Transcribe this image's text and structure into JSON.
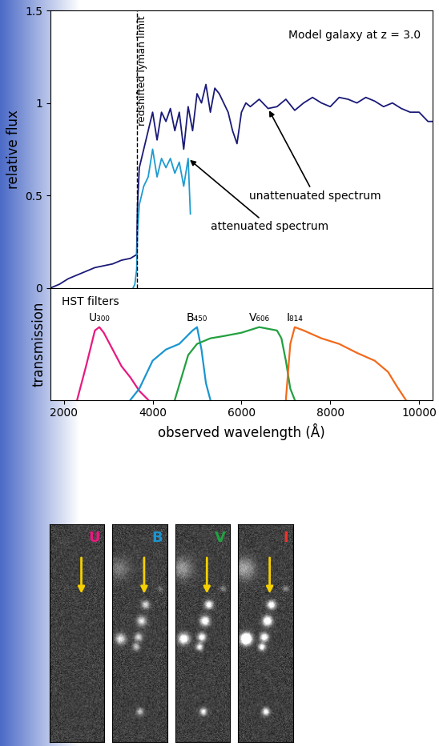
{
  "chart_data": [
    {
      "type": "line",
      "y_label": "relative flux",
      "xlim": [
        1700,
        10300
      ],
      "ylim": [
        0,
        1.5
      ],
      "xticks": [
        2000,
        4000,
        6000,
        8000,
        10000
      ],
      "yticks": [
        0,
        0.5,
        1,
        1.5
      ],
      "tick_labels": "y",
      "annotations": [
        "Model galaxy at z = 3.0"
      ],
      "lyman_limit": {
        "x": 3640,
        "label": "redshifted lyman limit"
      },
      "series": [
        {
          "name": "unattenuated spectrum",
          "color": "#1a1a78",
          "x": [
            1700,
            1900,
            2100,
            2300,
            2500,
            2700,
            2900,
            3100,
            3300,
            3500,
            3640,
            3660,
            3700,
            3800,
            3900,
            4000,
            4100,
            4200,
            4300,
            4400,
            4500,
            4600,
            4700,
            4800,
            4900,
            5000,
            5100,
            5200,
            5300,
            5400,
            5500,
            5600,
            5700,
            5800,
            5900,
            6000,
            6100,
            6200,
            6400,
            6600,
            6800,
            7000,
            7200,
            7400,
            7600,
            7800,
            8000,
            8200,
            8400,
            8600,
            8800,
            9000,
            9200,
            9400,
            9600,
            9800,
            10000,
            10200,
            10300
          ],
          "values": [
            0.0,
            0.02,
            0.05,
            0.07,
            0.09,
            0.11,
            0.12,
            0.13,
            0.15,
            0.16,
            0.18,
            0.45,
            0.65,
            0.75,
            0.85,
            0.95,
            0.8,
            0.95,
            0.9,
            0.97,
            0.85,
            0.95,
            0.75,
            0.98,
            0.85,
            1.05,
            1.0,
            1.1,
            0.95,
            1.08,
            1.05,
            1.0,
            0.95,
            0.85,
            0.78,
            0.95,
            1.0,
            0.98,
            1.02,
            0.97,
            0.98,
            1.02,
            0.96,
            1.0,
            1.03,
            1.0,
            0.98,
            1.03,
            1.02,
            1.0,
            1.03,
            1.01,
            0.98,
            1.0,
            0.97,
            0.95,
            0.95,
            0.9,
            0.9
          ]
        },
        {
          "name": "attenuated spectrum",
          "color": "#1e9bd0",
          "x": [
            3560,
            3600,
            3640,
            3660,
            3700,
            3800,
            3900,
            4000,
            4100,
            4200,
            4300,
            4400,
            4500,
            4600,
            4700,
            4800,
            4850
          ],
          "values": [
            0.0,
            0.02,
            0.1,
            0.3,
            0.45,
            0.55,
            0.6,
            0.75,
            0.6,
            0.7,
            0.65,
            0.7,
            0.62,
            0.68,
            0.55,
            0.7,
            0.4
          ]
        }
      ]
    },
    {
      "type": "line",
      "y_label": "transmission",
      "x_label": "observed wavelength (Å)",
      "xlim": [
        1700,
        10300
      ],
      "ylim": [
        0,
        1
      ],
      "xticks": [
        2000,
        4000,
        6000,
        8000,
        10000
      ],
      "tick_labels": "x",
      "annotations": [
        "HST filters"
      ],
      "series": [
        {
          "name": "U₃₀₀",
          "color": "#e8197f",
          "x": [
            2300,
            2500,
            2700,
            2800,
            2900,
            3100,
            3300,
            3500,
            3700,
            3900
          ],
          "values": [
            0.0,
            0.3,
            0.62,
            0.65,
            0.6,
            0.45,
            0.3,
            0.2,
            0.08,
            0.0
          ]
        },
        {
          "name": "B₄₅₀",
          "color": "#1b95d0",
          "x": [
            3500,
            3700,
            4000,
            4300,
            4600,
            4900,
            5000,
            5100,
            5200,
            5300
          ],
          "values": [
            0.0,
            0.1,
            0.35,
            0.45,
            0.5,
            0.62,
            0.65,
            0.45,
            0.15,
            0.0
          ]
        },
        {
          "name": "V₆₀₆",
          "color": "#22a040",
          "x": [
            4500,
            4800,
            5000,
            5300,
            5600,
            6000,
            6400,
            6800,
            6900,
            7000,
            7100,
            7200
          ],
          "values": [
            0.0,
            0.4,
            0.5,
            0.55,
            0.57,
            0.6,
            0.65,
            0.62,
            0.55,
            0.35,
            0.1,
            0.0
          ]
        },
        {
          "name": "I₈₁₄",
          "color": "#f26a1b",
          "x": [
            7000,
            7100,
            7200,
            7400,
            7800,
            8200,
            8600,
            9000,
            9300,
            9500,
            9700
          ],
          "values": [
            0.0,
            0.5,
            0.65,
            0.62,
            0.55,
            0.5,
            0.42,
            0.35,
            0.25,
            0.12,
            0.0
          ]
        }
      ]
    }
  ],
  "images": {
    "panels": [
      {
        "label": "U",
        "color": "#e8197f"
      },
      {
        "label": "B",
        "color": "#1b95d0"
      },
      {
        "label": "V",
        "color": "#22a040"
      },
      {
        "label": "I",
        "color": "#f0302a"
      }
    ]
  }
}
